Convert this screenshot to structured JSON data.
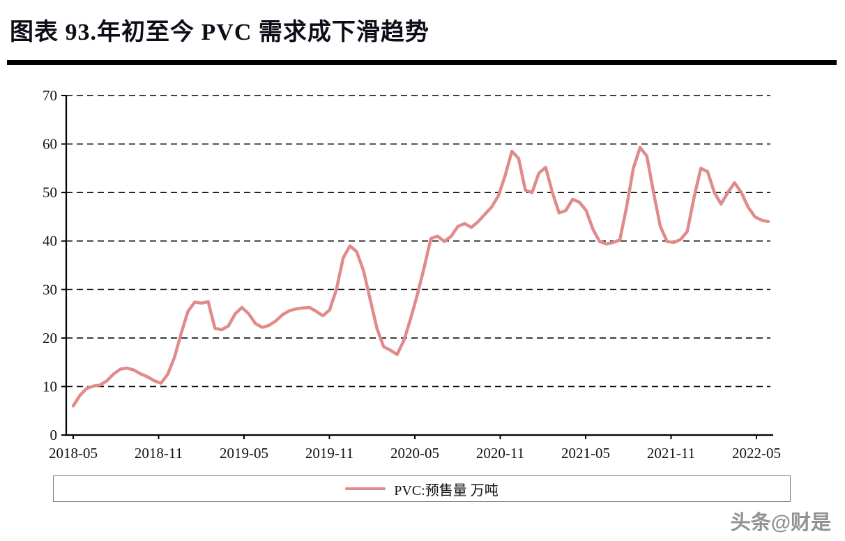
{
  "title": "图表 93.年初至今 PVC 需求成下滑趋势",
  "watermark": "头条@财是",
  "chart_data": {
    "type": "line",
    "title": "图表 93.年初至今 PVC 需求成下滑趋势",
    "legend": "PVC:预售量 万吨",
    "legend_position": "bottom",
    "grid": "horizontal-dashed",
    "ylim": [
      0,
      70
    ],
    "yticks": [
      0,
      10,
      20,
      30,
      40,
      50,
      60,
      70
    ],
    "xticks": [
      "2018-05",
      "2018-11",
      "2019-05",
      "2019-11",
      "2020-05",
      "2020-11",
      "2021-05",
      "2021-11",
      "2022-05"
    ],
    "line_color": "#e08b8b",
    "series": [
      {
        "name": "PVC:预售量 万吨",
        "unit": "万吨",
        "values": [
          6.0,
          8.2,
          9.6,
          10.1,
          10.3,
          11.2,
          12.6,
          13.6,
          13.8,
          13.4,
          12.6,
          12.0,
          11.2,
          10.7,
          12.5,
          16.0,
          21.0,
          25.5,
          27.4,
          27.2,
          27.5,
          22.0,
          21.7,
          22.5,
          25.0,
          26.3,
          25.0,
          23.0,
          22.2,
          22.6,
          23.5,
          24.8,
          25.6,
          26.0,
          26.2,
          26.3,
          25.5,
          24.6,
          25.8,
          30.0,
          36.5,
          39.0,
          37.8,
          34.0,
          28.0,
          22.0,
          18.2,
          17.5,
          16.6,
          19.5,
          24.0,
          29.0,
          34.5,
          40.5,
          41.0,
          39.9,
          41.0,
          43.0,
          43.6,
          42.8,
          44.0,
          45.5,
          47.0,
          49.3,
          53.5,
          58.5,
          57.0,
          50.5,
          50.0,
          54.0,
          55.2,
          50.0,
          45.8,
          46.3,
          48.6,
          48.0,
          46.3,
          42.5,
          39.9,
          39.4,
          39.7,
          40.2,
          47.0,
          55.0,
          59.3,
          57.5,
          50.0,
          43.0,
          39.9,
          39.7,
          40.3,
          42.0,
          49.0,
          55.0,
          54.3,
          50.0,
          47.6,
          50.0,
          52.0,
          50.0,
          47.0,
          45.0,
          44.3,
          44.0
        ]
      }
    ]
  }
}
